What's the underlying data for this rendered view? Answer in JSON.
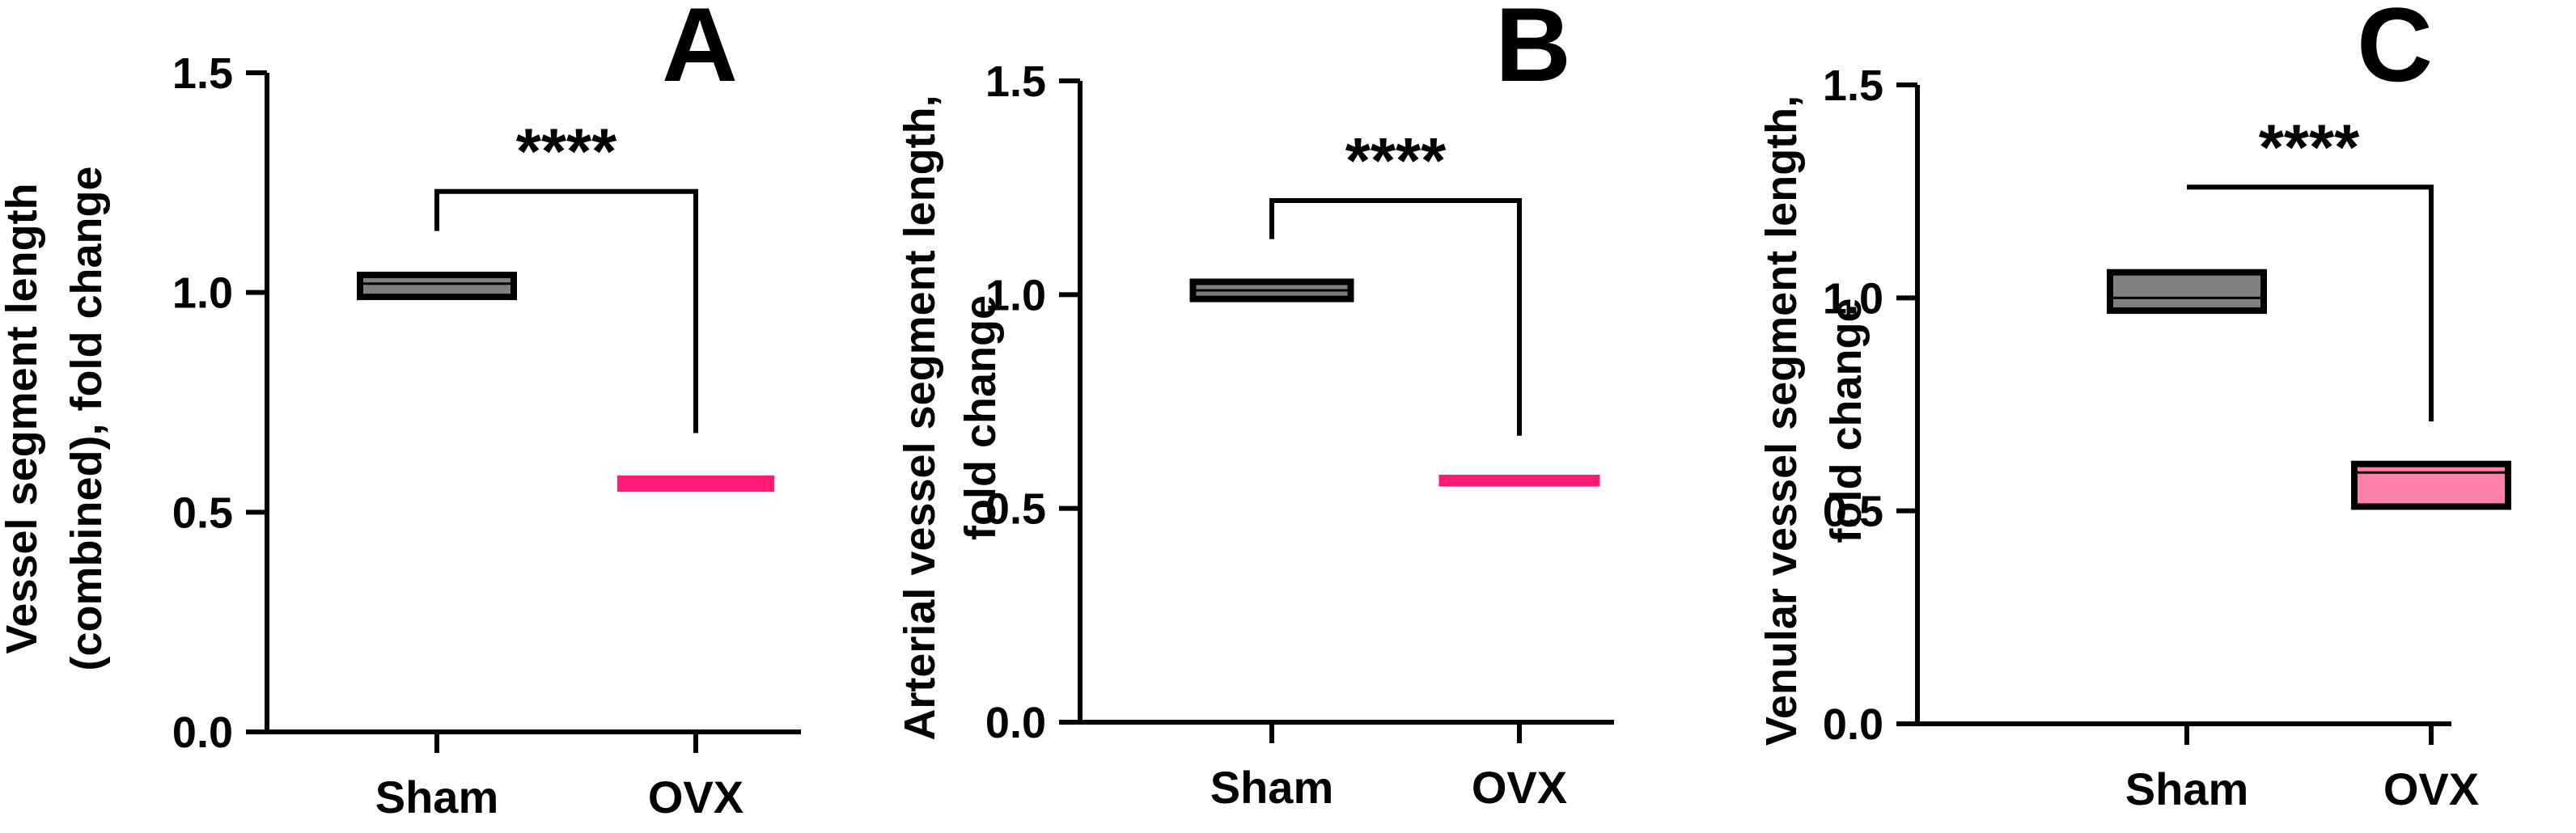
{
  "chart_data": [
    {
      "panel": "A",
      "type": "box",
      "ylabel_lines": [
        "Vessel segment length",
        "(combined), fold change"
      ],
      "categories": [
        "Sham",
        "OVX"
      ],
      "ylim": [
        0,
        1.5
      ],
      "yticks": [
        "0.0",
        "0.5",
        "1.0",
        "1.5"
      ],
      "grid": false,
      "boxes": [
        {
          "category": "Sham",
          "q1": 0.99,
          "median": 1.02,
          "q3": 1.04,
          "color": "#808080"
        },
        {
          "category": "OVX",
          "q1": 0.55,
          "median": 0.565,
          "q3": 0.58,
          "color": "#ff1a75"
        }
      ],
      "bracket": {
        "sham_start": 1.14,
        "top": 1.23,
        "ovx_end": 0.68,
        "label": "****"
      }
    },
    {
      "panel": "B",
      "type": "box",
      "ylabel_lines": [
        "Arterial vessel segment length,",
        "fold change"
      ],
      "categories": [
        "Sham",
        "OVX"
      ],
      "ylim": [
        0,
        1.5
      ],
      "yticks": [
        "0.0",
        "0.5",
        "1.0",
        "1.5"
      ],
      "grid": false,
      "boxes": [
        {
          "category": "Sham",
          "q1": 0.99,
          "median": 1.01,
          "q3": 1.03,
          "color": "#808080"
        },
        {
          "category": "OVX",
          "q1": 0.555,
          "median": 0.565,
          "q3": 0.575,
          "color": "#ff1a75"
        }
      ],
      "bracket": {
        "sham_start": 1.13,
        "top": 1.22,
        "ovx_end": 0.67,
        "label": "****"
      }
    },
    {
      "panel": "C",
      "type": "box",
      "ylabel_lines": [
        "Venular vessel segment length,",
        "fold change"
      ],
      "categories": [
        "Sham",
        "OVX"
      ],
      "ylim": [
        0,
        1.5
      ],
      "yticks": [
        "0.0",
        "0.5",
        "1.0",
        "1.5"
      ],
      "grid": false,
      "boxes": [
        {
          "category": "Sham",
          "q1": 0.97,
          "median": 1.0,
          "q3": 1.06,
          "color": "#808080"
        },
        {
          "category": "OVX",
          "q1": 0.51,
          "median": 0.59,
          "q3": 0.61,
          "color": "#ff80ab"
        }
      ],
      "bracket": {
        "sham_start": 1.26,
        "top": 1.26,
        "ovx_end": 0.71,
        "label": "****"
      }
    }
  ]
}
